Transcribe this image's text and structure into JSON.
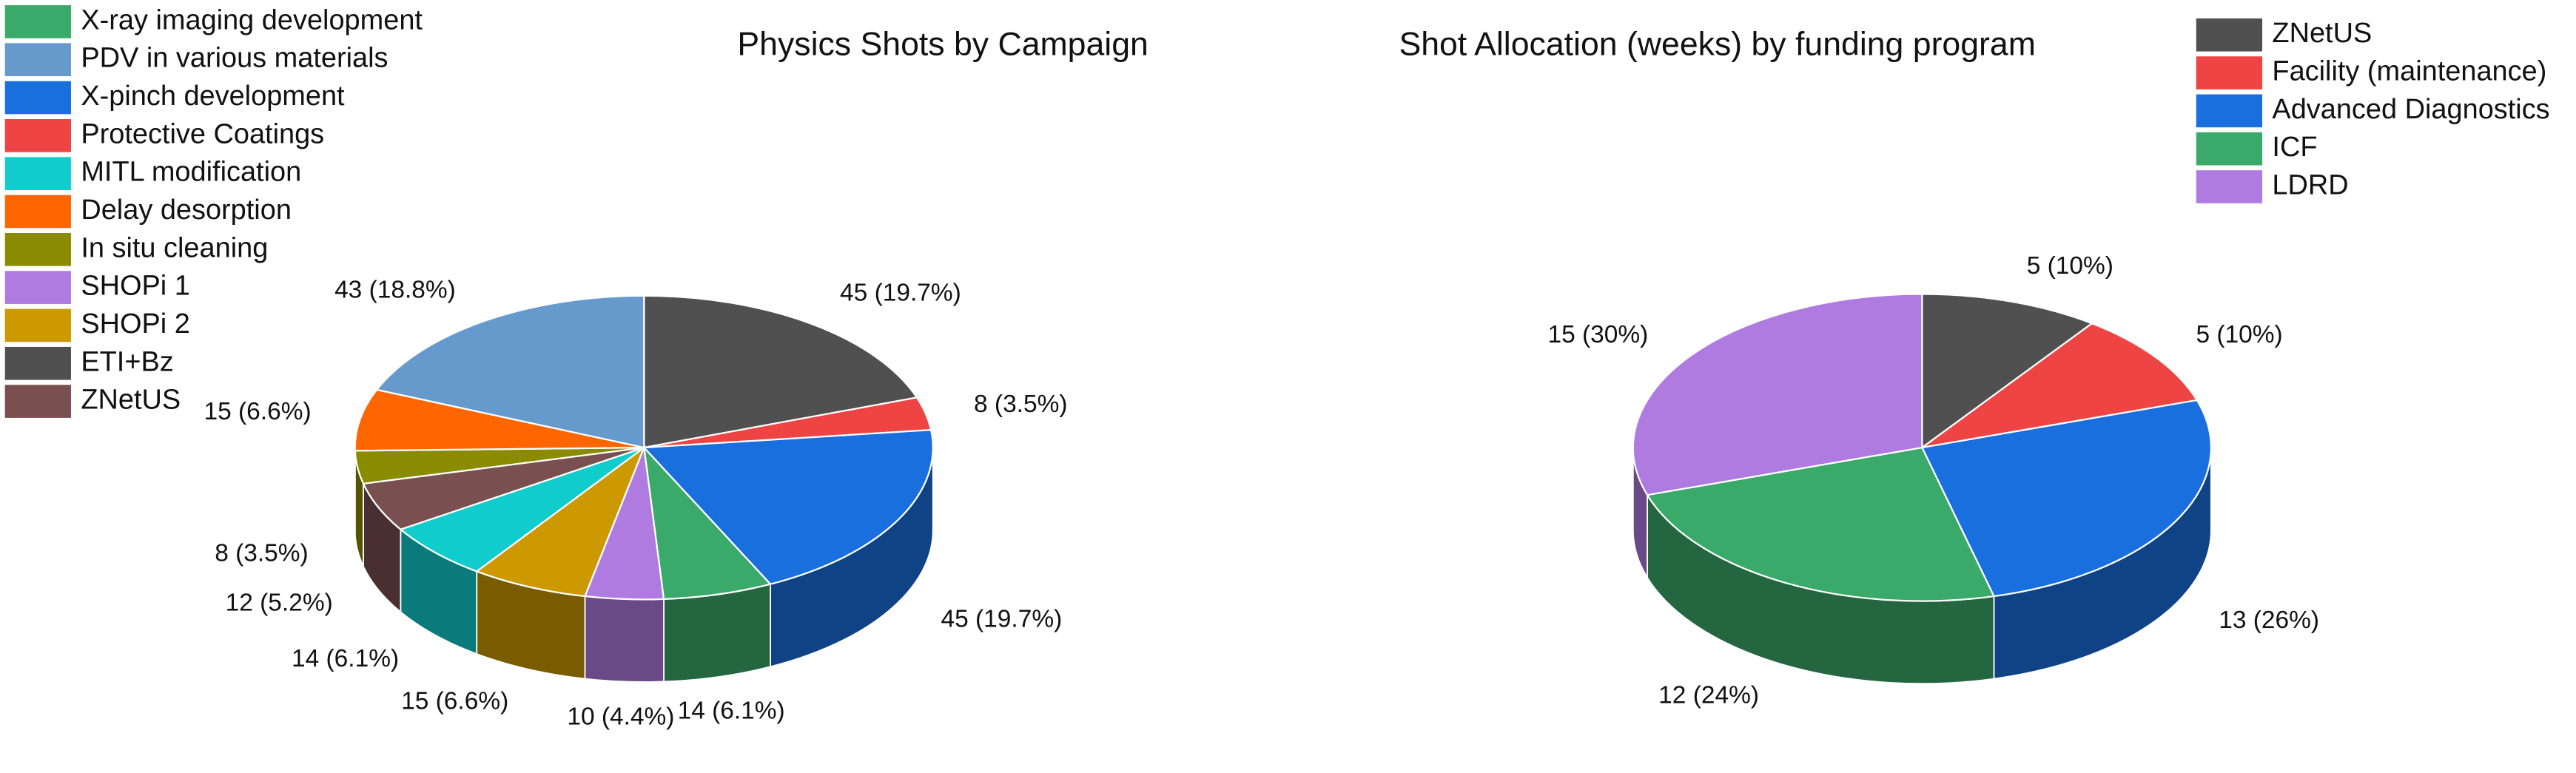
{
  "chart_data": [
    {
      "type": "pie",
      "title": "Physics Shots by Campaign",
      "categories": [
        "X-ray imaging development",
        "PDV in various materials",
        "X-pinch development",
        "Protective Coatings",
        "MITL modification",
        "Delay desorption",
        "In situ cleaning",
        "SHOPi 1",
        "SHOPi 2",
        "ETI+Bz",
        "ZNetUS"
      ],
      "values": [
        14,
        43,
        45,
        8,
        14,
        15,
        8,
        10,
        15,
        45,
        12
      ],
      "value_labels": [
        "14 (6.1%)",
        "43 (18.8%)",
        "45 (19.7%)",
        "8 (3.5%)",
        "14 (6.1%)",
        "15 (6.6%)",
        "8 (3.5%)",
        "10 (4.4%)",
        "15 (6.6%)",
        "45 (19.7%)",
        "12 (5.2%)"
      ],
      "colors": [
        "#3aaa6a",
        "#6699cc",
        "#1a6fdf",
        "#ee4444",
        "#11cccc",
        "#ff6600",
        "#8b8b00",
        "#b07be0",
        "#cc9900",
        "#505050",
        "#7a4f4f"
      ],
      "legend_position": "upper left"
    },
    {
      "type": "pie",
      "title": "Shot Allocation (weeks) by funding program",
      "categories": [
        "ZNetUS",
        "Facility (maintenance)",
        "Advanced Diagnostics",
        "ICF",
        "LDRD"
      ],
      "values": [
        5,
        5,
        13,
        12,
        15
      ],
      "value_labels": [
        "5 (10%)",
        "5 (10%)",
        "13 (26%)",
        "12 (24%)",
        "15 (30%)"
      ],
      "colors": [
        "#505050",
        "#ee4444",
        "#1a6fdf",
        "#3aaa6a",
        "#b07be0"
      ],
      "legend_position": "upper right"
    }
  ]
}
